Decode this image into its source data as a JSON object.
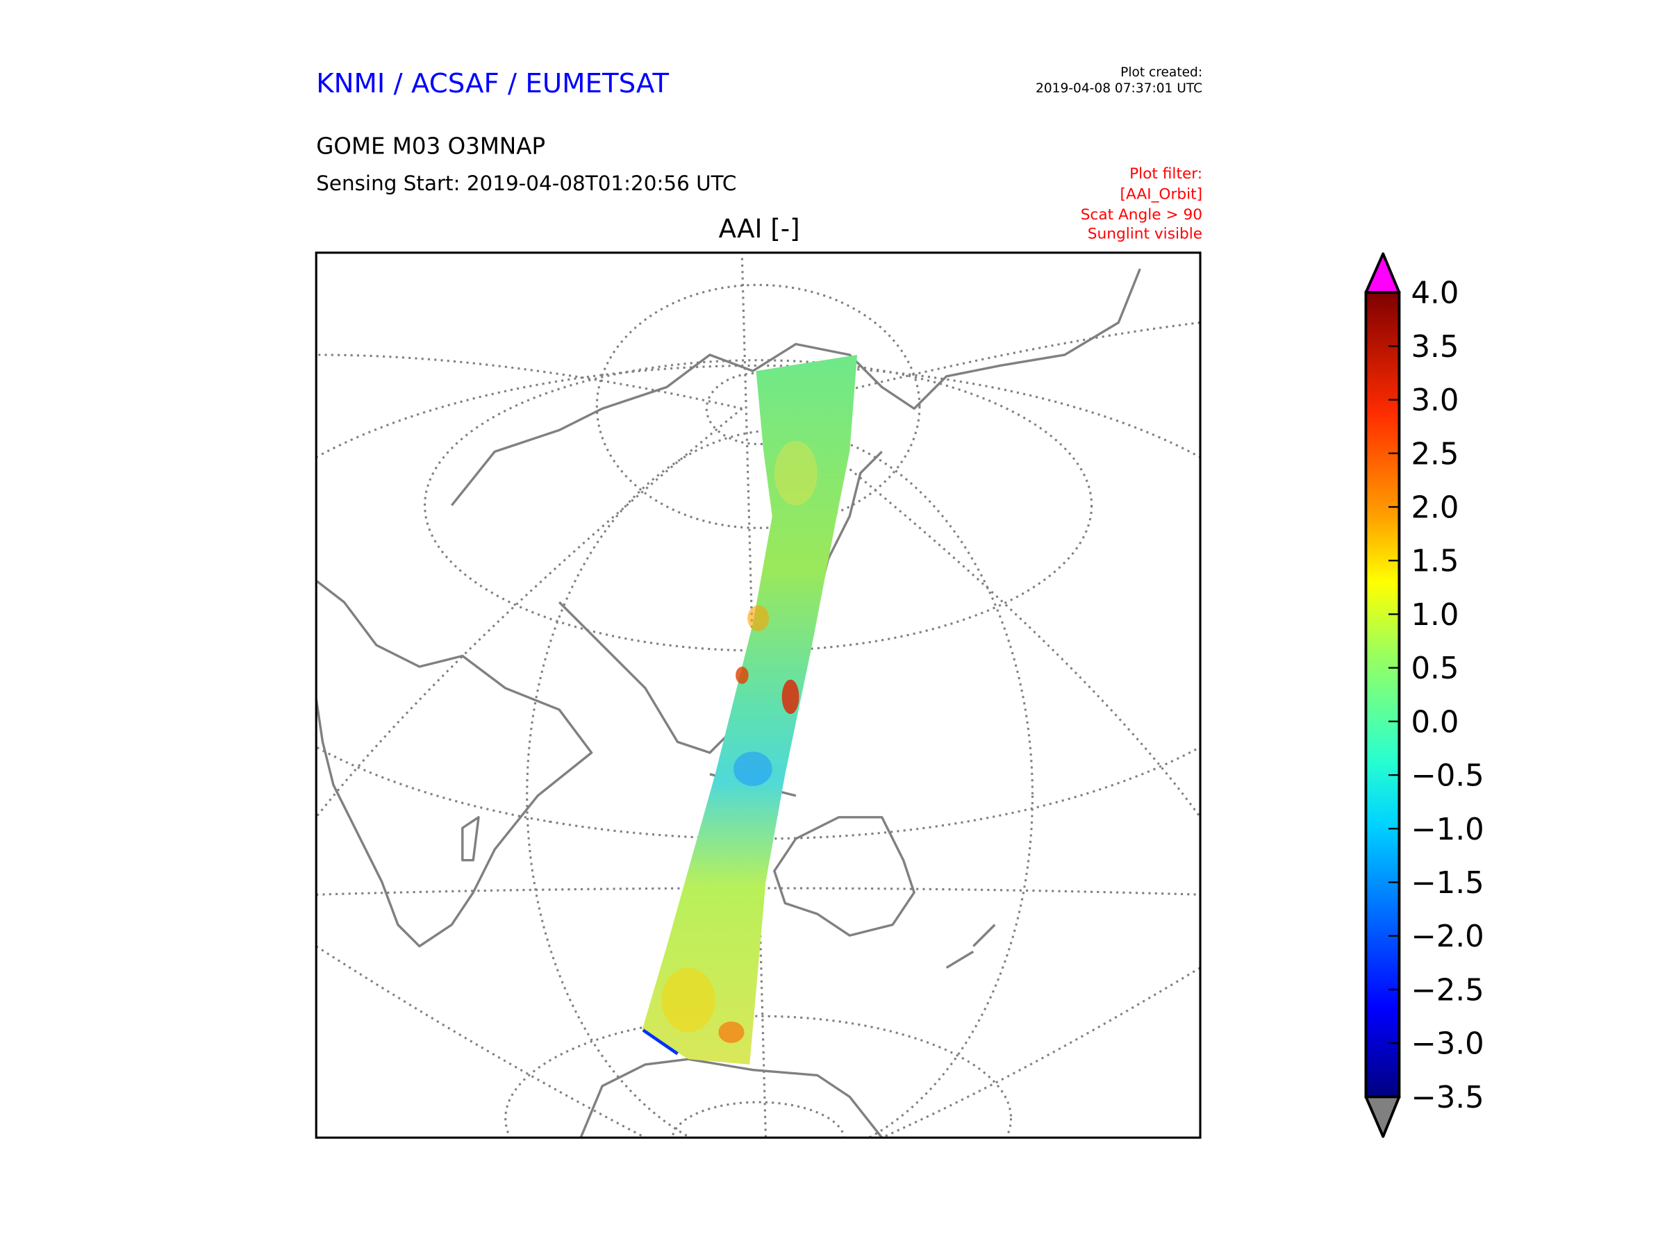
{
  "header": {
    "agency": "KNMI / ACSAF / EUMETSAT",
    "product": "GOME M03 O3MNAP",
    "sensing_start": "Sensing Start: 2019-04-08T01:20:56 UTC",
    "created_label": "Plot created:",
    "created_time": "2019-04-08 07:37:01 UTC",
    "filter": [
      "Plot filter:",
      "[AAI_Orbit]",
      "Scat Angle > 90",
      "Sunglint visible"
    ]
  },
  "colors": {
    "agency": "#0000ff",
    "filter": "#ff0000",
    "over": "#ff00ff",
    "under": "#808080",
    "coast": "#808080"
  },
  "chart_data": {
    "type": "heatmap",
    "title": "AAI [-]",
    "projection": "orthographic map, single satellite orbit swath",
    "colorbar": {
      "min": -3.5,
      "max": 4.0,
      "extend": "both",
      "ticks": [
        4.0,
        3.5,
        3.0,
        2.5,
        2.0,
        1.5,
        1.0,
        0.5,
        0.0,
        -0.5,
        -1.0,
        -1.5,
        -2.0,
        -2.5,
        -3.0,
        -3.5
      ],
      "tick_labels": [
        "4.0",
        "3.5",
        "3.0",
        "2.5",
        "2.0",
        "1.5",
        "1.0",
        "0.5",
        "0.0",
        "−0.5",
        "−1.0",
        "−1.5",
        "−2.0",
        "−2.5",
        "−3.0",
        "−3.5"
      ],
      "colormap": "jet"
    },
    "swath_typical_value_range": [
      -0.5,
      1.0
    ]
  }
}
